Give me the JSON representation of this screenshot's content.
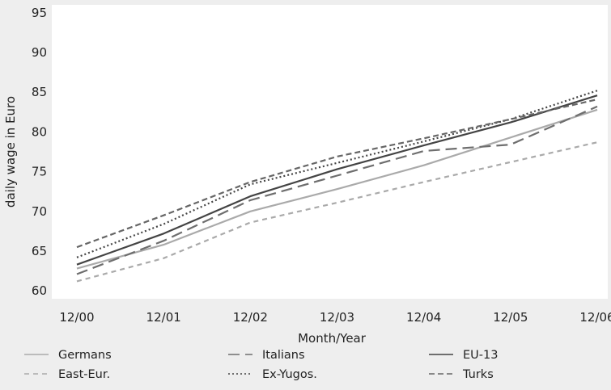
{
  "chart_data": {
    "type": "line",
    "title": "",
    "xlabel": "Month/Year",
    "ylabel": "daily wage in Euro",
    "categories": [
      "12/00",
      "12/01",
      "12/02",
      "12/03",
      "12/04",
      "12/05",
      "12/06"
    ],
    "ylim": [
      59,
      96
    ],
    "yticks": [
      60,
      65,
      70,
      75,
      80,
      85,
      90,
      95
    ],
    "grid": false,
    "legend_position": "bottom",
    "series": [
      {
        "name": "Germans",
        "color": "#aaaaaa",
        "dash": "solid",
        "values": [
          62.8,
          65.8,
          70.0,
          72.8,
          75.8,
          79.3,
          82.8
        ]
      },
      {
        "name": "Italians",
        "color": "#6e6e6e",
        "dash": "longdash",
        "values": [
          62.1,
          66.3,
          71.4,
          74.5,
          77.6,
          78.4,
          83.2
        ]
      },
      {
        "name": "EU-13",
        "color": "#444444",
        "dash": "solid",
        "values": [
          63.3,
          67.2,
          71.9,
          75.3,
          78.3,
          81.2,
          84.6
        ]
      },
      {
        "name": "East-Eur.",
        "color": "#aaaaaa",
        "dash": "shortdash",
        "values": [
          61.2,
          64.1,
          68.6,
          71.1,
          73.7,
          76.2,
          78.7
        ]
      },
      {
        "name": "Ex-Yugos.",
        "color": "#444444",
        "dash": "dotted",
        "values": [
          64.2,
          68.4,
          73.4,
          76.1,
          78.8,
          81.6,
          85.2
        ]
      },
      {
        "name": "Turks",
        "color": "#666666",
        "dash": "dashed",
        "values": [
          65.5,
          69.5,
          73.7,
          76.9,
          79.2,
          81.6,
          84.1
        ]
      }
    ]
  }
}
